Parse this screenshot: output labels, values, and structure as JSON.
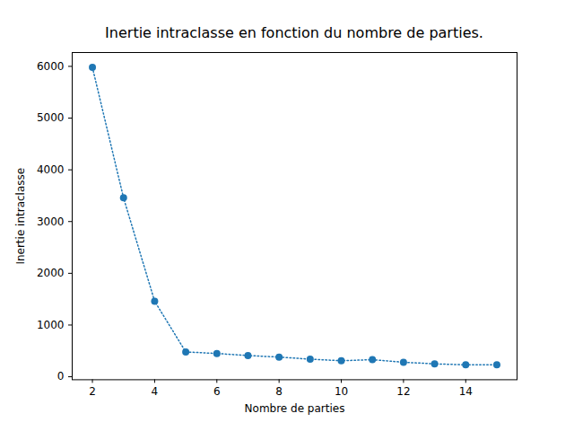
{
  "chart_data": {
    "type": "line",
    "title": "Inertie intraclasse en fonction du nombre de parties.",
    "x_label": "Nombre de parties",
    "y_label": "Inertie intraclasse",
    "x": [
      2,
      3,
      4,
      5,
      6,
      7,
      8,
      9,
      10,
      11,
      12,
      13,
      14,
      15
    ],
    "values": [
      5980,
      3460,
      1460,
      480,
      450,
      410,
      380,
      340,
      310,
      330,
      280,
      250,
      230,
      230
    ],
    "color": "#1f77b4",
    "marker": "circle",
    "line_style": "dotted",
    "xlim": [
      1.35,
      15.65
    ],
    "xticks": [
      2,
      4,
      6,
      8,
      10,
      12,
      14
    ],
    "ylim": [
      -57.5,
      6267.5
    ],
    "yticks": [
      0,
      1000,
      2000,
      3000,
      4000,
      5000,
      6000
    ],
    "grid": false
  }
}
